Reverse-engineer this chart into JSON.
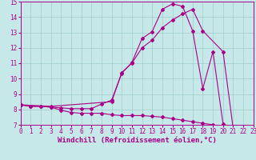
{
  "xlabel": "Windchill (Refroidissement éolien,°C)",
  "xlim": [
    0,
    23
  ],
  "ylim": [
    7,
    15
  ],
  "xticks": [
    0,
    1,
    2,
    3,
    4,
    5,
    6,
    7,
    8,
    9,
    10,
    11,
    12,
    13,
    14,
    15,
    16,
    17,
    18,
    19,
    20,
    21,
    22,
    23
  ],
  "yticks": [
    7,
    8,
    9,
    10,
    11,
    12,
    13,
    14,
    15
  ],
  "bg_color": "#c6e8e8",
  "grid_color": "#a0cccc",
  "line_color": "#aa0088",
  "line1_x": [
    0,
    1,
    2,
    3,
    4,
    5,
    6,
    7,
    8,
    9,
    10,
    11,
    12,
    13,
    14,
    15,
    16,
    17,
    18,
    19,
    20,
    21,
    22,
    23
  ],
  "line1_y": [
    8.3,
    8.2,
    8.2,
    8.15,
    7.95,
    7.8,
    7.75,
    7.75,
    7.75,
    7.65,
    7.6,
    7.6,
    7.6,
    7.55,
    7.5,
    7.4,
    7.3,
    7.2,
    7.1,
    7.0,
    6.9,
    6.75,
    6.7,
    6.65
  ],
  "line2_x": [
    0,
    1,
    2,
    3,
    4,
    5,
    6,
    7,
    8,
    9,
    10,
    11,
    12,
    13,
    14,
    15,
    16,
    17,
    18,
    19,
    20,
    21,
    22,
    23
  ],
  "line2_y": [
    8.3,
    8.2,
    8.2,
    8.15,
    8.1,
    8.05,
    8.05,
    8.05,
    8.35,
    8.6,
    10.35,
    11.05,
    12.6,
    13.05,
    14.5,
    14.85,
    14.7,
    13.1,
    9.35,
    11.75,
    7.05,
    6.75,
    6.7,
    6.65
  ],
  "line3_x": [
    0,
    3,
    9,
    10,
    11,
    12,
    13,
    14,
    15,
    16,
    17,
    18,
    20,
    21
  ],
  "line3_y": [
    8.3,
    8.2,
    8.5,
    10.4,
    11.0,
    12.0,
    12.5,
    13.3,
    13.8,
    14.2,
    14.5,
    13.1,
    11.75,
    6.75
  ],
  "tick_fontsize": 5.5,
  "label_fontsize": 6.5,
  "markersize": 2.0,
  "linewidth": 0.8
}
